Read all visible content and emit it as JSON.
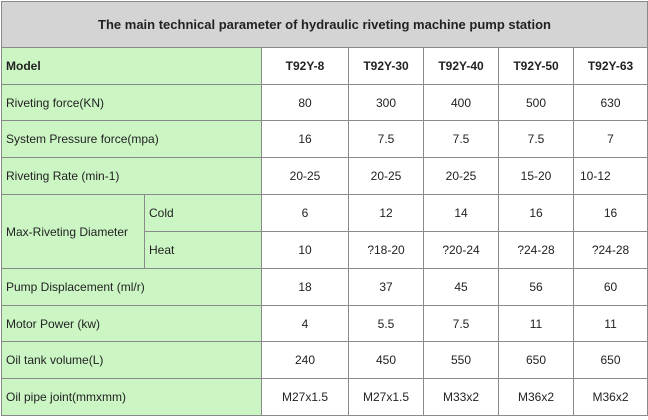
{
  "title": "The main technical parameter of hydraulic riveting machine pump station",
  "header": {
    "label": "Model",
    "models": [
      "T92Y-8",
      "T92Y-30",
      "T92Y-40",
      "T92Y-50",
      "T92Y-63"
    ]
  },
  "rows": {
    "riveting_force": {
      "label": "Riveting force(KN)",
      "values": [
        "80",
        "300",
        "400",
        "500",
        "630"
      ]
    },
    "system_pressure": {
      "label": "System Pressure force(mpa)",
      "values": [
        "16",
        "7.5",
        "7.5",
        "7.5",
        "7"
      ]
    },
    "riveting_rate": {
      "label": "Riveting Rate (min-1)",
      "values": [
        "20-25",
        "20-25",
        "20-25",
        "15-20",
        "10-12"
      ]
    },
    "max_diameter": {
      "label": "Max-Riveting Diameter",
      "cold": {
        "label": "Cold",
        "values": [
          "6",
          "12",
          "14",
          "16",
          "16"
        ]
      },
      "heat": {
        "label": "Heat",
        "values": [
          "10",
          "?18-20",
          "?20-24",
          "?24-28",
          "?24-28"
        ]
      }
    },
    "pump_displacement": {
      "label": "Pump Displacement (ml/r)",
      "values": [
        "18",
        "37",
        "45",
        "56",
        "60"
      ]
    },
    "motor_power": {
      "label": "Motor Power (kw)",
      "values": [
        "4",
        "5.5",
        "7.5",
        "11",
        "11"
      ]
    },
    "oil_tank": {
      "label": "Oil tank volume(L)",
      "values": [
        "240",
        "450",
        "550",
        "650",
        "650"
      ]
    },
    "oil_pipe": {
      "label": "Oil pipe joint(mmxmm)",
      "values": [
        "M27x1.5",
        "M27x1.5",
        "M33x2",
        "M36x2",
        "M36x2"
      ]
    }
  }
}
